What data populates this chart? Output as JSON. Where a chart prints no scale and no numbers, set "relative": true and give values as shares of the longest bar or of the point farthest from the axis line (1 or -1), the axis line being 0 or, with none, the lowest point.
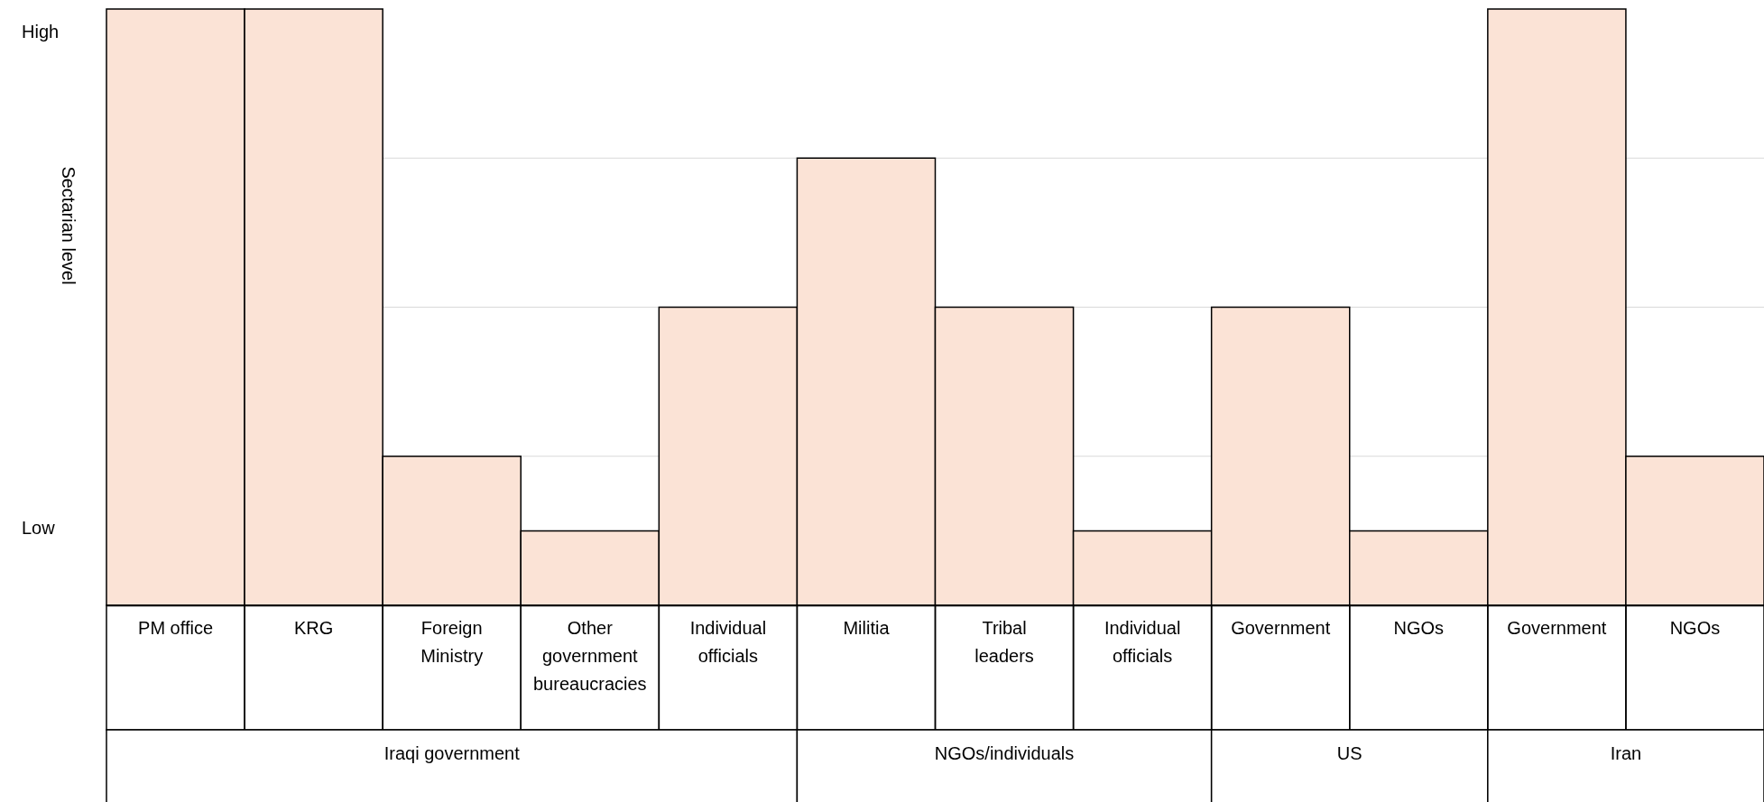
{
  "chart_data": {
    "type": "bar",
    "relative": true,
    "ylabel": "Sectarian level",
    "categories": [
      "PM office",
      "KRG",
      "Foreign Ministry",
      "Other government bureaucracies",
      "Individual officials",
      "Militia",
      "Tribal leaders",
      "Individual officials",
      "Government",
      "NGOs",
      "Government",
      "NGOs"
    ],
    "values": [
      1,
      1,
      0.25,
      0.125,
      0.5,
      0.75,
      0.5,
      0.125,
      0.5,
      0.125,
      1,
      0.25
    ],
    "color": "#fbe3d6",
    "grid": "y",
    "annotations": [
      "High",
      "Low",
      "Iraqi government",
      "NGOs/individuals",
      "US",
      "Iran"
    ]
  }
}
